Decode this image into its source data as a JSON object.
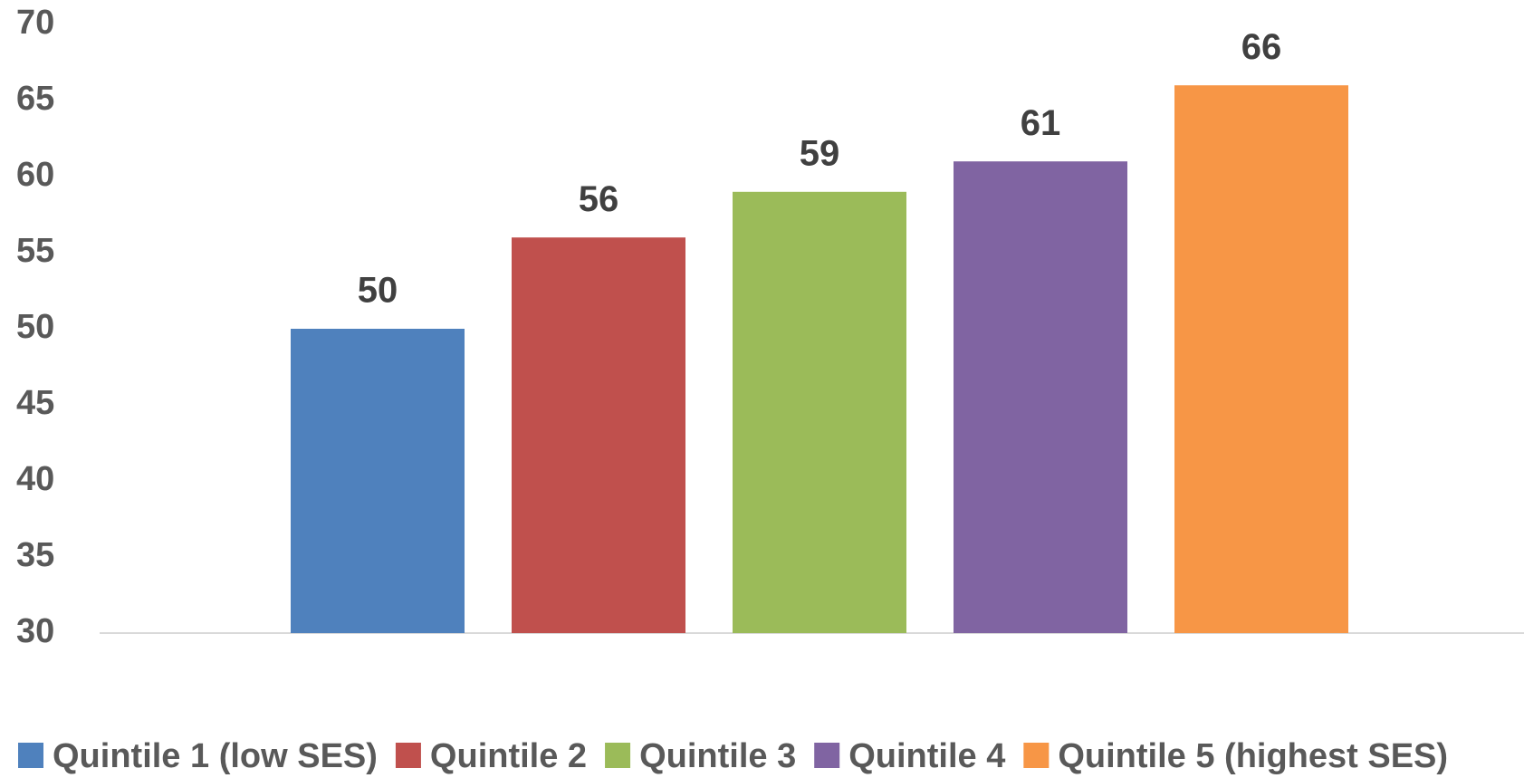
{
  "chart_data": {
    "type": "bar",
    "series": [
      {
        "name": "Quintile 1 (low SES)",
        "color": "#4f81bd",
        "values": [
          50
        ]
      },
      {
        "name": "Quintile 2",
        "color": "#c0504d",
        "values": [
          56
        ]
      },
      {
        "name": "Quintile 3",
        "color": "#9bbb59",
        "values": [
          59
        ]
      },
      {
        "name": "Quintile 4",
        "color": "#8064a2",
        "values": [
          61
        ]
      },
      {
        "name": "Quintile 5 (highest SES)",
        "color": "#f79646",
        "values": [
          66
        ]
      }
    ],
    "ylim": [
      30,
      70
    ],
    "yticks": [
      30,
      35,
      40,
      45,
      50,
      55,
      60,
      65,
      70
    ],
    "grid": false,
    "legend": "bottom"
  }
}
